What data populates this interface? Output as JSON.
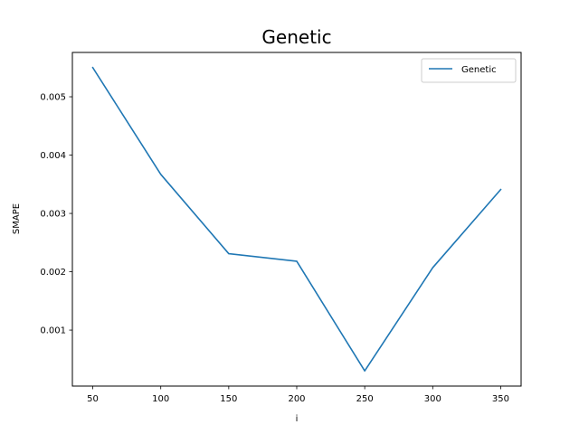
{
  "chart_data": {
    "type": "line",
    "title": "Genetic",
    "xlabel": "i",
    "ylabel": "SMAPE",
    "x": [
      50,
      100,
      150,
      200,
      250,
      300,
      350
    ],
    "series": [
      {
        "name": "Genetic",
        "color": "#1f77b4",
        "values": [
          0.0055,
          0.00367,
          0.00231,
          0.00218,
          0.0003,
          0.00207,
          0.00341
        ]
      }
    ],
    "xlim": [
      35,
      365
    ],
    "ylim": [
      4e-05,
      0.00576
    ],
    "x_ticks": [
      50,
      100,
      150,
      200,
      250,
      300,
      350
    ],
    "x_tick_labels": [
      "50",
      "100",
      "150",
      "200",
      "250",
      "300",
      "350"
    ],
    "y_ticks": [
      0.001,
      0.002,
      0.003,
      0.004,
      0.005
    ],
    "y_tick_labels": [
      "0.001",
      "0.002",
      "0.003",
      "0.004",
      "0.005"
    ],
    "grid": false,
    "legend_position": "top-right"
  }
}
